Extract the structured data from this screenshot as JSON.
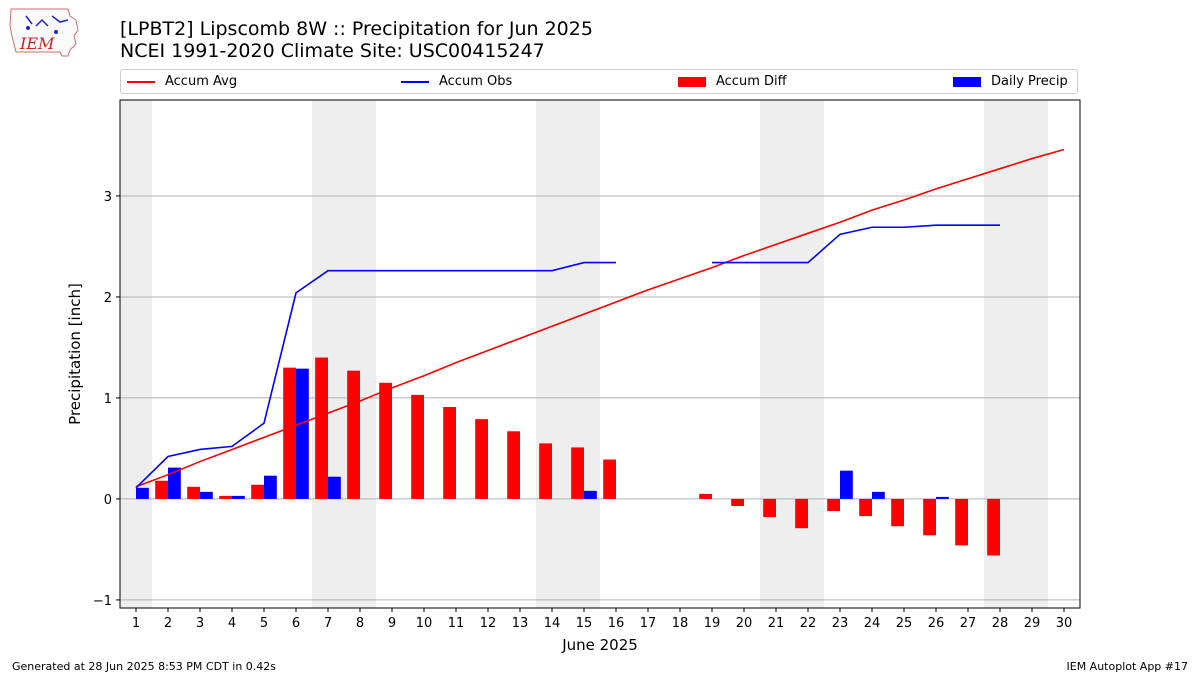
{
  "header": {
    "title_line1": "[LPBT2] Lipscomb 8W :: Precipitation for Jun 2025",
    "title_line2": "NCEI 1991-2020 Climate Site: USC00415247",
    "logo_text": "IEM"
  },
  "footer": {
    "left": "Generated at 28 Jun 2025 8:53 PM CDT in 0.42s",
    "right": "IEM Autoplot App #17"
  },
  "colors": {
    "avg": "#ff0000",
    "obs": "#0000ff",
    "diff": "#ff0000",
    "daily": "#0000ff",
    "weekend_shade": "#eeeeee",
    "grid": "#b0b0b0"
  },
  "chart_data": {
    "type": "bar",
    "xlabel": "June 2025",
    "ylabel": "Precipitation [inch]",
    "xlim": [
      0.5,
      30.5
    ],
    "ylim": [
      -1.08,
      3.95
    ],
    "yticks": [
      -1,
      0,
      1,
      2,
      3
    ],
    "x": [
      1,
      2,
      3,
      4,
      5,
      6,
      7,
      8,
      9,
      10,
      11,
      12,
      13,
      14,
      15,
      16,
      17,
      18,
      19,
      20,
      21,
      22,
      23,
      24,
      25,
      26,
      27,
      28,
      29,
      30
    ],
    "weekend_spans": [
      [
        0.5,
        1.5
      ],
      [
        6.5,
        8.5
      ],
      [
        13.5,
        15.5
      ],
      [
        20.5,
        22.5
      ],
      [
        27.5,
        29.5
      ]
    ],
    "legend": {
      "placement": "top, above plot",
      "entries": [
        {
          "key": "avg",
          "label": "Accum Avg",
          "kind": "line"
        },
        {
          "key": "obs",
          "label": "Accum Obs",
          "kind": "line"
        },
        {
          "key": "diff",
          "label": "Accum Diff",
          "kind": "bar"
        },
        {
          "key": "daily",
          "label": "Daily Precip",
          "kind": "bar"
        }
      ]
    },
    "series": [
      {
        "name": "Accum Avg",
        "key": "avg",
        "kind": "line",
        "x": [
          1,
          2,
          3,
          4,
          5,
          6,
          7,
          8,
          9,
          10,
          11,
          12,
          13,
          14,
          15,
          16,
          17,
          18,
          19,
          20,
          21,
          22,
          23,
          24,
          25,
          26,
          27,
          28,
          29,
          30
        ],
        "values": [
          0.12,
          0.24,
          0.37,
          0.49,
          0.61,
          0.73,
          0.85,
          0.97,
          1.1,
          1.22,
          1.35,
          1.47,
          1.59,
          1.71,
          1.83,
          1.95,
          2.07,
          2.18,
          2.29,
          2.41,
          2.52,
          2.63,
          2.74,
          2.86,
          2.96,
          3.07,
          3.17,
          3.27,
          3.37,
          3.46
        ]
      },
      {
        "name": "Accum Obs",
        "key": "obs",
        "kind": "line",
        "x": [
          1,
          2,
          3,
          4,
          5,
          6,
          7,
          8,
          9,
          10,
          11,
          12,
          13,
          14,
          15,
          16,
          17,
          18,
          19,
          20,
          21,
          22,
          23,
          24,
          25,
          26,
          27,
          28,
          29,
          30
        ],
        "values": [
          0.11,
          0.42,
          0.49,
          0.52,
          0.75,
          2.04,
          2.26,
          2.26,
          2.26,
          2.26,
          2.26,
          2.26,
          2.26,
          2.26,
          2.34,
          2.34,
          null,
          null,
          2.34,
          2.34,
          2.34,
          2.34,
          2.62,
          2.69,
          2.69,
          2.71,
          2.71,
          2.71,
          null,
          null
        ]
      },
      {
        "name": "Accum Diff",
        "key": "diff",
        "kind": "bar",
        "x": [
          1,
          2,
          3,
          4,
          5,
          6,
          7,
          8,
          9,
          10,
          11,
          12,
          13,
          14,
          15,
          16,
          17,
          18,
          19,
          20,
          21,
          22,
          23,
          24,
          25,
          26,
          27,
          28,
          29,
          30
        ],
        "values": [
          0.0,
          0.18,
          0.12,
          0.03,
          0.14,
          1.3,
          1.4,
          1.27,
          1.15,
          1.03,
          0.91,
          0.79,
          0.67,
          0.55,
          0.51,
          0.39,
          0,
          0,
          0.05,
          -0.07,
          -0.18,
          -0.29,
          -0.12,
          -0.17,
          -0.27,
          -0.36,
          -0.46,
          -0.56,
          0,
          0
        ]
      },
      {
        "name": "Daily Precip",
        "key": "daily",
        "kind": "bar",
        "x": [
          1,
          2,
          3,
          4,
          5,
          6,
          7,
          8,
          9,
          10,
          11,
          12,
          13,
          14,
          15,
          16,
          17,
          18,
          19,
          20,
          21,
          22,
          23,
          24,
          25,
          26,
          27,
          28,
          29,
          30
        ],
        "values": [
          0.11,
          0.31,
          0.07,
          0.03,
          0.23,
          1.29,
          0.22,
          0,
          0,
          0,
          0,
          0,
          0,
          0,
          0.08,
          0,
          0,
          0,
          0,
          0,
          0,
          0,
          0.28,
          0.07,
          0,
          0.02,
          0,
          0,
          0,
          0
        ]
      }
    ]
  }
}
